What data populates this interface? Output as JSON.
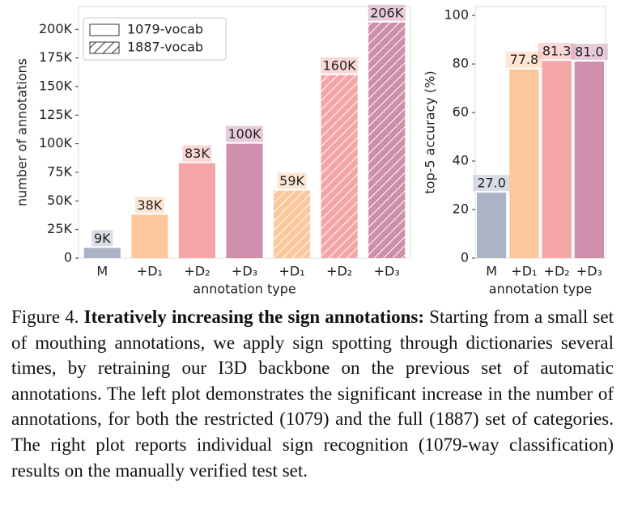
{
  "chart_data": [
    {
      "type": "bar",
      "xlabel": "annotation type",
      "ylabel": "number of annotations",
      "categories": [
        "M",
        "+D₁",
        "+D₂",
        "+D₃",
        "+D₁",
        "+D₂",
        "+D₃"
      ],
      "colors": [
        "#aab4c6",
        "#fdc79c",
        "#f4a6a6",
        "#cd8fac",
        "#fdc79c",
        "#f4a6a6",
        "#cd8fac"
      ],
      "series": [
        {
          "name": "1079-vocab",
          "hatch": false,
          "values": [
            9000,
            38000,
            83000,
            100000,
            null,
            null,
            null
          ],
          "value_labels": [
            "9K",
            "38K",
            "83K",
            "100K",
            null,
            null,
            null
          ]
        },
        {
          "name": "1887-vocab",
          "hatch": true,
          "values": [
            null,
            null,
            null,
            null,
            59000,
            160000,
            206000
          ],
          "value_labels": [
            null,
            null,
            null,
            null,
            "59K",
            "160K",
            "206K"
          ]
        }
      ],
      "ylim": [
        0,
        220000
      ],
      "yticks": [
        0,
        {
          "value": 25000,
          "label": "25K"
        },
        {
          "value": 50000,
          "label": "50K"
        },
        {
          "value": 75000,
          "label": "75K"
        },
        {
          "value": 100000,
          "label": "100K"
        },
        {
          "value": 125000,
          "label": "125K"
        },
        {
          "value": 150000,
          "label": "150K"
        },
        {
          "value": 175000,
          "label": "175K"
        },
        {
          "value": 200000,
          "label": "200K"
        }
      ],
      "legend": "upper left"
    },
    {
      "type": "bar",
      "xlabel": "annotation type",
      "ylabel": "top-5 accuracy (%)",
      "categories": [
        "M",
        "+D₁",
        "+D₂",
        "+D₃"
      ],
      "colors": [
        "#aab4c6",
        "#fdc79c",
        "#f4a6a6",
        "#cd8fac"
      ],
      "values": [
        27.0,
        77.8,
        81.3,
        81.0
      ],
      "value_labels": [
        "27.0",
        "77.8",
        "81.3",
        "81.0"
      ],
      "ylim": [
        0,
        103.7
      ],
      "yticks": [
        0,
        20,
        40,
        60,
        80,
        100
      ]
    }
  ],
  "caption": {
    "label": "Figure 4.",
    "title": "Iteratively increasing the sign annotations:",
    "text": "Starting from a small set of mouthing annotations, we apply sign spotting through dictionaries several times, by retraining our I3D backbone on the previous set of automatic annotations. The left plot demonstrates the significant increase in the number of annotations, for both the restricted (1079) and the full (1887) set of categories. The right plot reports individual sign recognition (1079-way classification) results on the manually verified test set."
  }
}
